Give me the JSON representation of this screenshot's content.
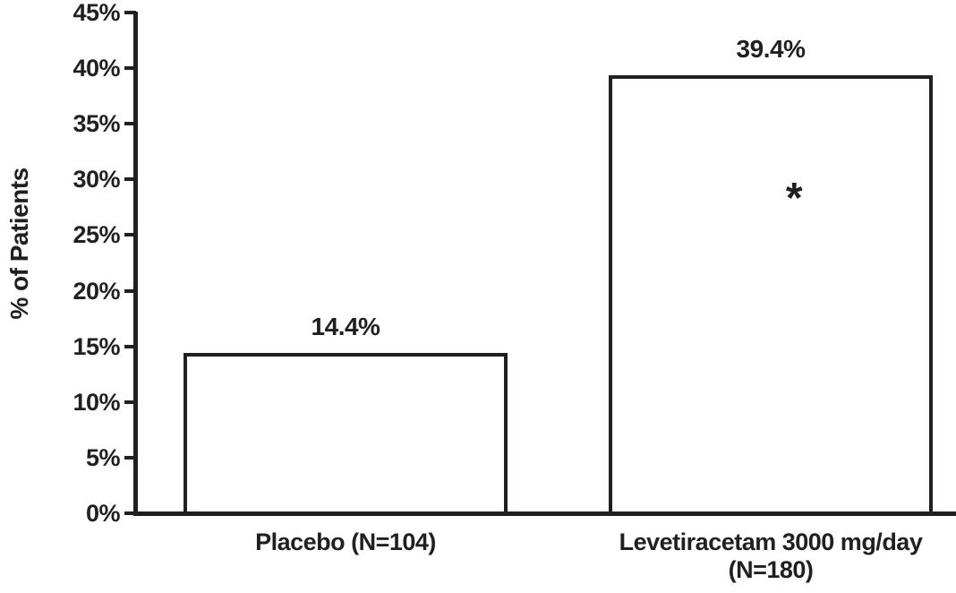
{
  "chart_data": {
    "type": "bar",
    "title": "",
    "xlabel": "",
    "ylabel": "% of Patients",
    "ylim": [
      0,
      45
    ],
    "ytick_values": [
      0,
      5,
      10,
      15,
      20,
      25,
      30,
      35,
      40,
      45
    ],
    "ytick_labels": [
      "0%",
      "5%",
      "10%",
      "15%",
      "20%",
      "25%",
      "30%",
      "35%",
      "40%",
      "45%"
    ],
    "categories": [
      {
        "lines": [
          "Placebo (N=104)"
        ]
      },
      {
        "lines": [
          "Levetiracetam 3000 mg/day",
          "(N=180)"
        ]
      }
    ],
    "values": [
      14.4,
      39.4
    ],
    "value_labels": [
      "14.4%",
      "39.4%"
    ],
    "annotations": [
      {
        "text": "*",
        "bar_index": 1,
        "y_value": 28.5
      }
    ],
    "grid": false,
    "legend_position": null,
    "bar_fill": "#ffffff",
    "ink_color": "#231f20"
  }
}
